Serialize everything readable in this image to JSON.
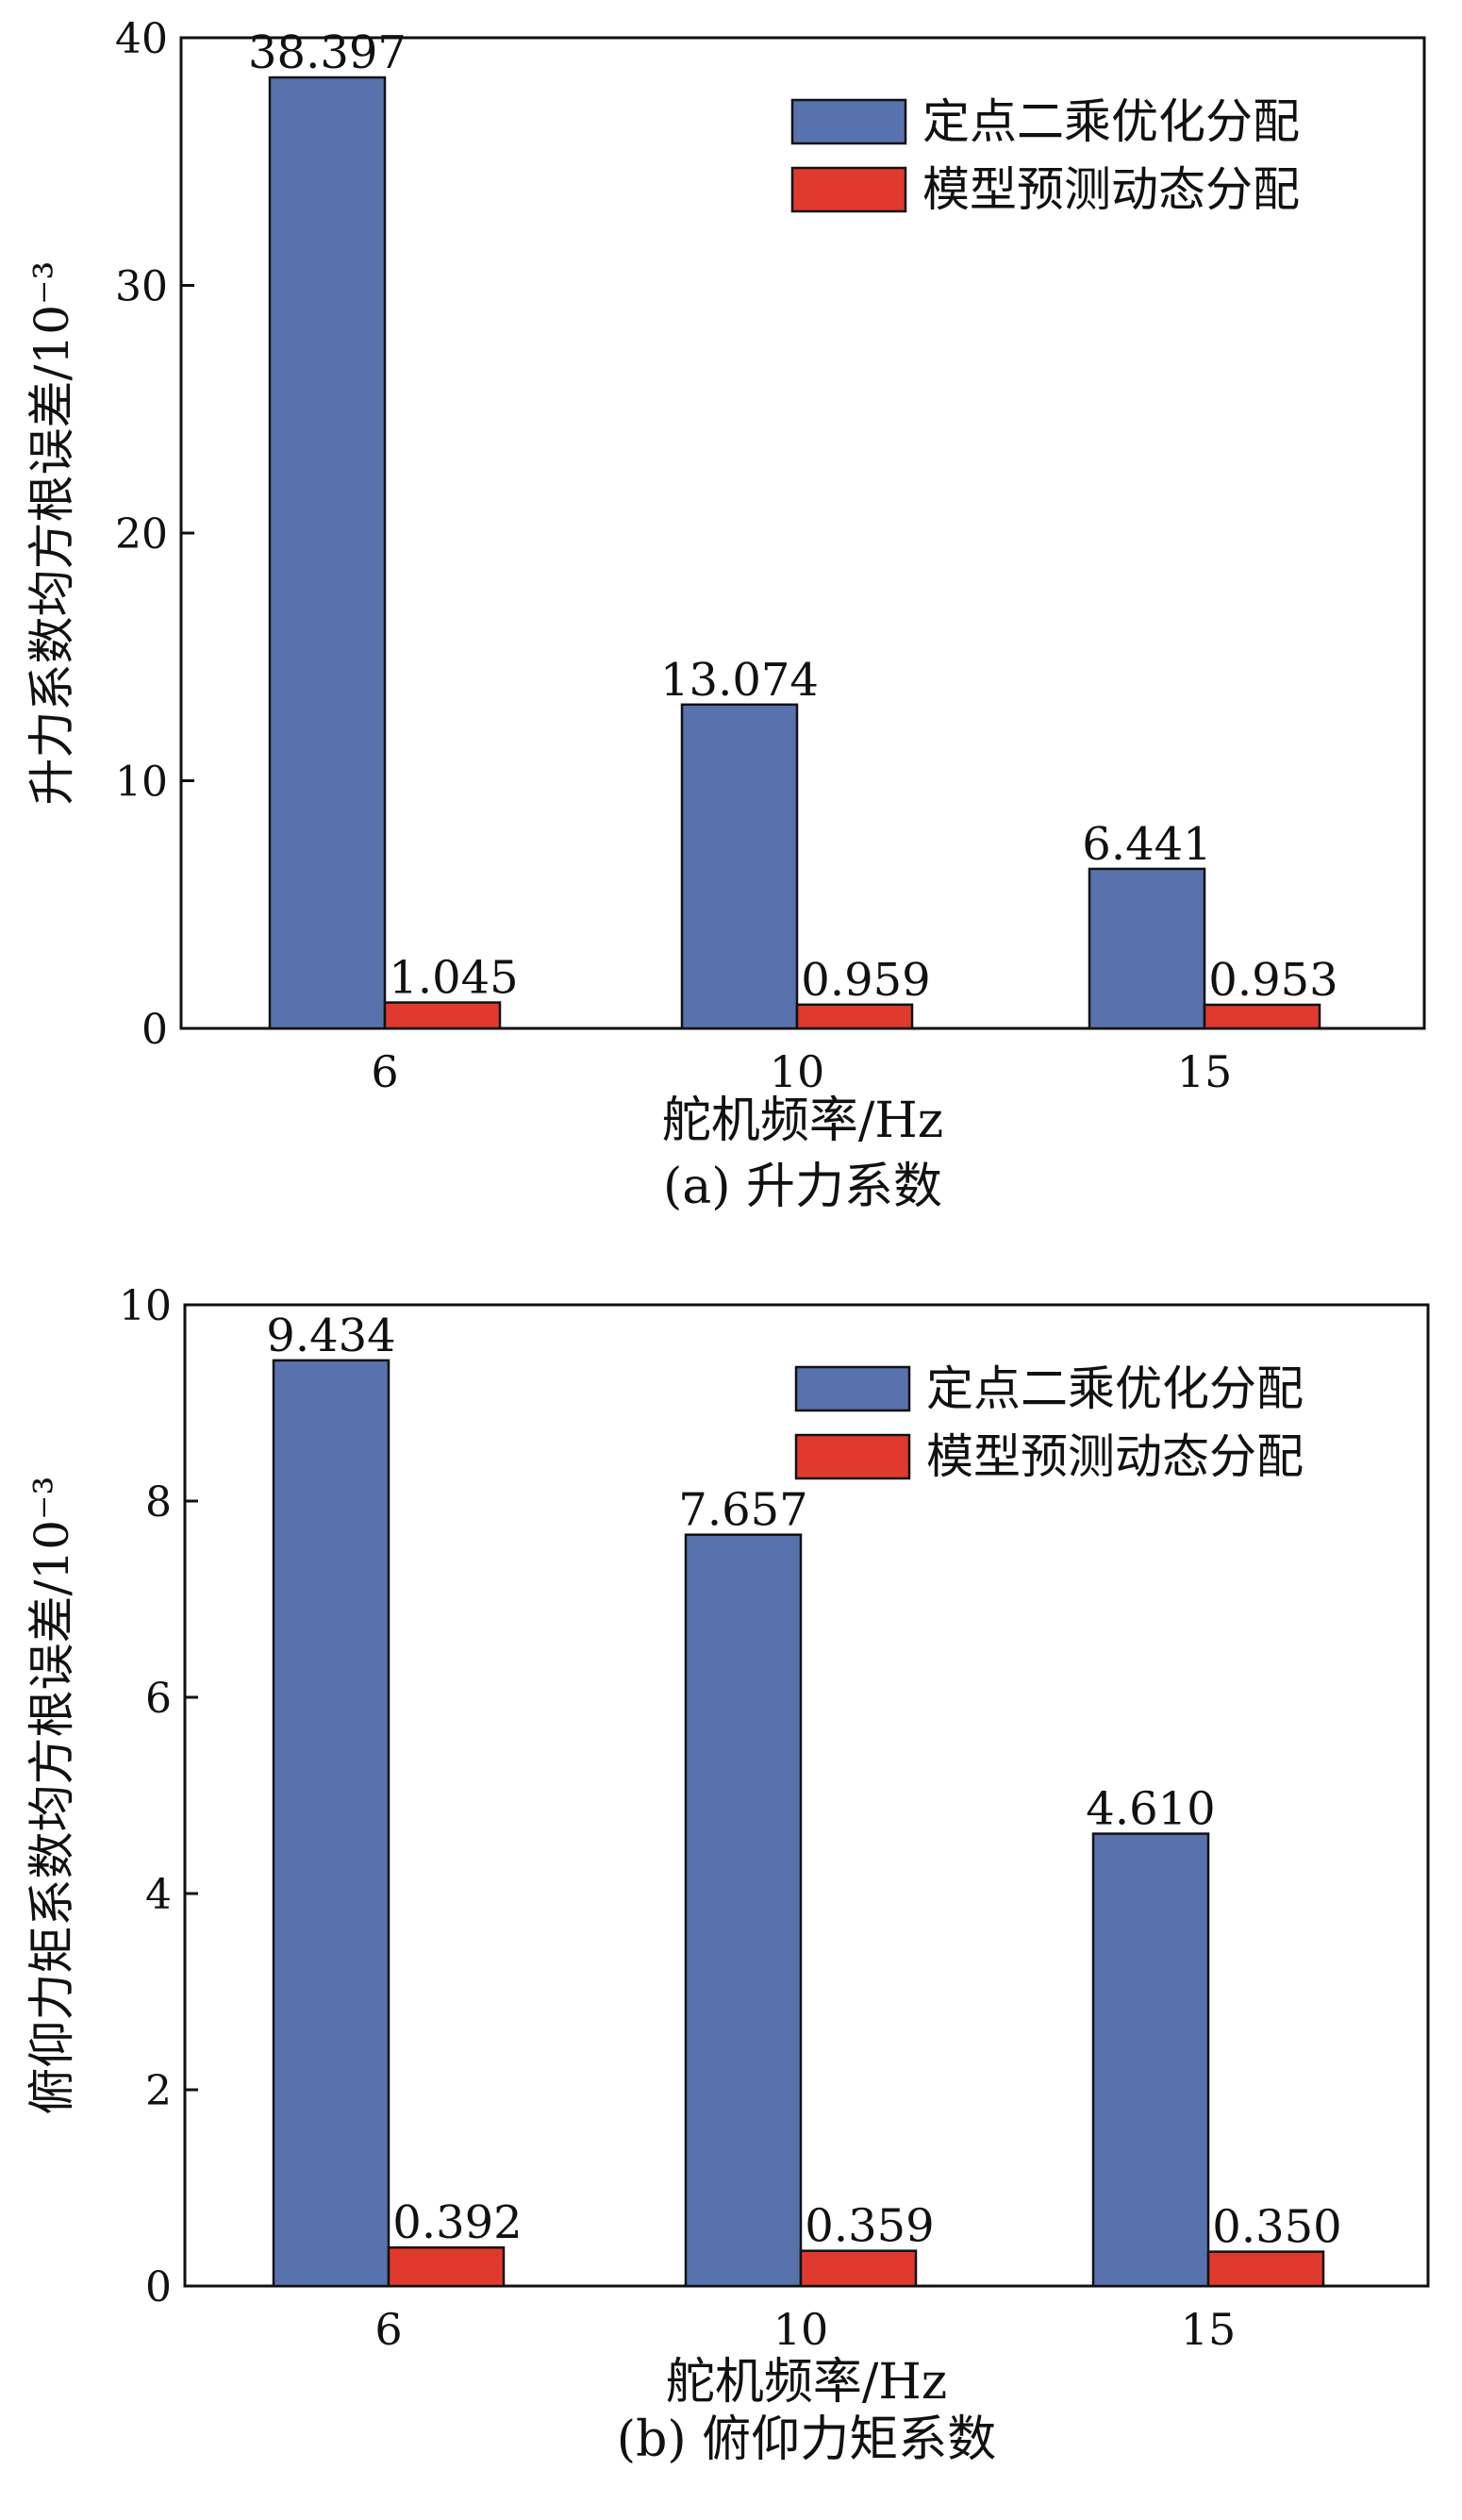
{
  "colors": {
    "series_1": "#5872ad",
    "series_2": "#e03a2e",
    "axis": "#111111",
    "background": "#ffffff"
  },
  "chart_data": [
    {
      "type": "bar",
      "caption": "(a) 升力系数",
      "xlabel": "舵机频率/Hz",
      "ylabel": "升力系数均方根误差/10⁻³",
      "categories": [
        "6",
        "10",
        "15"
      ],
      "ylim": [
        0,
        40
      ],
      "yticks": [
        0,
        10,
        20,
        30,
        40
      ],
      "legend_position": "top-right",
      "grid": false,
      "series": [
        {
          "name": "定点二乘优化分配",
          "values": [
            38.397,
            13.074,
            6.441
          ],
          "labels": [
            "38.397",
            "13.074",
            "6.441"
          ]
        },
        {
          "name": "模型预测动态分配",
          "values": [
            1.045,
            0.959,
            0.953
          ],
          "labels": [
            "1.045",
            "0.959",
            "0.953"
          ]
        }
      ]
    },
    {
      "type": "bar",
      "caption": "(b) 俯仰力矩系数",
      "xlabel": "舵机频率/Hz",
      "ylabel": "俯仰力矩系数均方根误差/10⁻³",
      "categories": [
        "6",
        "10",
        "15"
      ],
      "ylim": [
        0,
        10
      ],
      "yticks": [
        0,
        2,
        4,
        6,
        8,
        10
      ],
      "legend_position": "top-right",
      "grid": false,
      "series": [
        {
          "name": "定点二乘优化分配",
          "values": [
            9.434,
            7.657,
            4.61
          ],
          "labels": [
            "9.434",
            "7.657",
            "4.610"
          ]
        },
        {
          "name": "模型预测动态分配",
          "values": [
            0.392,
            0.359,
            0.35
          ],
          "labels": [
            "0.392",
            "0.359",
            "0.350"
          ]
        }
      ]
    }
  ]
}
